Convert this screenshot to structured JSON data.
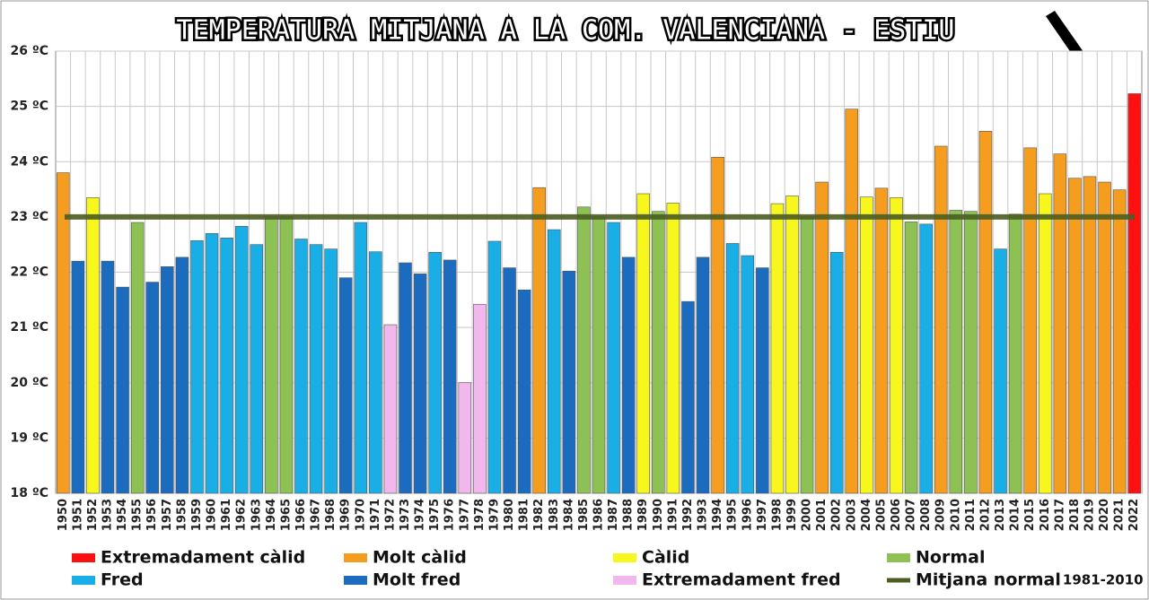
{
  "chart_data": {
    "type": "bar",
    "title": "TEMPERATURA MITJANA A LA COM. VALENCIANA - ESTIU",
    "categories": [
      "1950",
      "1951",
      "1952",
      "1953",
      "1954",
      "1955",
      "1956",
      "1957",
      "1958",
      "1959",
      "1960",
      "1961",
      "1962",
      "1963",
      "1964",
      "1965",
      "1966",
      "1967",
      "1968",
      "1969",
      "1970",
      "1971",
      "1972",
      "1973",
      "1974",
      "1975",
      "1976",
      "1977",
      "1978",
      "1979",
      "1980",
      "1981",
      "1982",
      "1983",
      "1984",
      "1985",
      "1986",
      "1987",
      "1988",
      "1989",
      "1990",
      "1991",
      "1992",
      "1993",
      "1994",
      "1995",
      "1996",
      "1997",
      "1998",
      "1999",
      "2000",
      "2001",
      "2002",
      "2003",
      "2004",
      "2005",
      "2006",
      "2007",
      "2008",
      "2009",
      "2010",
      "2011",
      "2012",
      "2013",
      "2014",
      "2015",
      "2016",
      "2017",
      "2018",
      "2019",
      "2020",
      "2021",
      "2022"
    ],
    "series": [
      {
        "name": "Extremadament càlid",
        "color": "#ff1010",
        "values": [
          null,
          null,
          null,
          null,
          null,
          null,
          null,
          null,
          null,
          null,
          null,
          null,
          null,
          null,
          null,
          null,
          null,
          null,
          null,
          null,
          null,
          null,
          null,
          null,
          null,
          null,
          null,
          null,
          null,
          null,
          null,
          null,
          null,
          null,
          null,
          null,
          null,
          null,
          null,
          null,
          null,
          null,
          null,
          null,
          null,
          null,
          null,
          null,
          null,
          null,
          null,
          null,
          null,
          null,
          null,
          null,
          null,
          null,
          null,
          null,
          null,
          null,
          null,
          null,
          null,
          null,
          null,
          null,
          null,
          null,
          null,
          null,
          25.23
        ]
      },
      {
        "name": "Molt càlid",
        "color": "#f59d1f",
        "values": [
          23.8,
          null,
          null,
          null,
          null,
          null,
          null,
          null,
          null,
          null,
          null,
          null,
          null,
          null,
          null,
          null,
          null,
          null,
          null,
          null,
          null,
          null,
          null,
          null,
          null,
          null,
          null,
          null,
          null,
          null,
          null,
          null,
          23.53,
          null,
          null,
          null,
          null,
          null,
          null,
          null,
          null,
          null,
          null,
          null,
          24.08,
          null,
          null,
          null,
          null,
          null,
          null,
          23.63,
          null,
          24.95,
          null,
          23.52,
          null,
          null,
          null,
          24.28,
          null,
          null,
          24.55,
          null,
          null,
          24.25,
          null,
          24.14,
          23.7,
          23.73,
          23.63,
          23.49,
          null
        ]
      },
      {
        "name": "Càlid",
        "color": "#f7f71e",
        "values": [
          null,
          null,
          23.35,
          null,
          null,
          null,
          null,
          null,
          null,
          null,
          null,
          null,
          null,
          null,
          null,
          null,
          null,
          null,
          null,
          null,
          null,
          null,
          null,
          null,
          null,
          null,
          null,
          null,
          null,
          null,
          null,
          null,
          null,
          null,
          null,
          null,
          null,
          null,
          null,
          23.42,
          null,
          23.25,
          null,
          null,
          null,
          null,
          null,
          null,
          23.24,
          23.38,
          null,
          null,
          null,
          null,
          23.36,
          null,
          23.35,
          null,
          null,
          null,
          null,
          null,
          null,
          null,
          null,
          null,
          23.42,
          null,
          null,
          null,
          null,
          null,
          null
        ]
      },
      {
        "name": "Normal",
        "color": "#8dc154",
        "values": [
          null,
          null,
          null,
          null,
          null,
          22.9,
          null,
          null,
          null,
          null,
          null,
          null,
          null,
          null,
          23.0,
          23.0,
          null,
          null,
          null,
          null,
          null,
          null,
          null,
          null,
          null,
          null,
          null,
          null,
          null,
          null,
          null,
          null,
          null,
          null,
          null,
          23.18,
          23.0,
          null,
          null,
          null,
          23.1,
          null,
          null,
          null,
          null,
          null,
          null,
          null,
          null,
          null,
          23.0,
          null,
          null,
          null,
          null,
          null,
          null,
          22.91,
          null,
          null,
          23.12,
          23.1,
          null,
          null,
          23.05,
          null,
          null,
          null,
          null,
          null,
          null,
          null,
          null
        ]
      },
      {
        "name": "Fred",
        "color": "#1aaee6",
        "values": [
          null,
          null,
          null,
          null,
          null,
          null,
          null,
          null,
          null,
          22.57,
          22.7,
          22.62,
          22.83,
          22.5,
          null,
          null,
          22.6,
          22.5,
          22.42,
          null,
          22.9,
          22.37,
          null,
          null,
          null,
          22.36,
          null,
          null,
          null,
          22.56,
          null,
          null,
          null,
          22.77,
          null,
          null,
          null,
          22.9,
          null,
          null,
          null,
          null,
          null,
          null,
          null,
          22.52,
          22.3,
          null,
          null,
          null,
          null,
          null,
          22.36,
          null,
          null,
          null,
          null,
          null,
          22.87,
          null,
          null,
          null,
          null,
          22.42,
          null,
          null,
          null,
          null,
          null,
          null,
          null,
          null,
          null
        ]
      },
      {
        "name": "Molt fred",
        "color": "#1b6cbf",
        "values": [
          null,
          22.2,
          null,
          22.2,
          21.73,
          null,
          21.82,
          22.1,
          22.27,
          null,
          null,
          null,
          null,
          null,
          null,
          null,
          null,
          null,
          null,
          21.9,
          null,
          null,
          null,
          22.17,
          21.97,
          null,
          22.22,
          null,
          null,
          null,
          22.08,
          21.68,
          null,
          null,
          22.02,
          null,
          null,
          null,
          22.27,
          null,
          null,
          null,
          21.47,
          22.27,
          null,
          null,
          null,
          22.08,
          null,
          null,
          null,
          null,
          null,
          null,
          null,
          null,
          null,
          null,
          null,
          null,
          null,
          null,
          null,
          null,
          null,
          null,
          null,
          null,
          null,
          null,
          null,
          null,
          null
        ]
      },
      {
        "name": "Extremadament fred",
        "color": "#f2b7ec",
        "values": [
          null,
          null,
          null,
          null,
          null,
          null,
          null,
          null,
          null,
          null,
          null,
          null,
          null,
          null,
          null,
          null,
          null,
          null,
          null,
          null,
          null,
          null,
          21.05,
          null,
          null,
          null,
          null,
          20.0,
          21.42,
          null,
          null,
          null,
          null,
          null,
          null,
          null,
          null,
          null,
          null,
          null,
          null,
          null,
          null,
          null,
          null,
          null,
          null,
          null,
          null,
          null,
          null,
          null,
          null,
          null,
          null,
          null,
          null,
          null,
          null,
          null,
          null,
          null,
          null,
          null,
          null,
          null,
          null,
          null,
          null,
          null,
          null,
          null,
          null
        ]
      }
    ],
    "reference_line": {
      "name": "Mitjana normal",
      "label": "1981-2010",
      "value": 23,
      "color": "#4b5e22"
    },
    "ylim": [
      18,
      26
    ],
    "yticks": [
      {
        "value": 18,
        "label": "18 ºC"
      },
      {
        "value": 19,
        "label": "19 ºC"
      },
      {
        "value": 20,
        "label": "20 ºC"
      },
      {
        "value": 21,
        "label": "21 ºC"
      },
      {
        "value": 22,
        "label": "22 ºC"
      },
      {
        "value": 23,
        "label": "23 ºC"
      },
      {
        "value": 24,
        "label": "24 ºC"
      },
      {
        "value": 25,
        "label": "25 ºC"
      },
      {
        "value": 26,
        "label": "26 ºC"
      }
    ],
    "grid": true
  }
}
